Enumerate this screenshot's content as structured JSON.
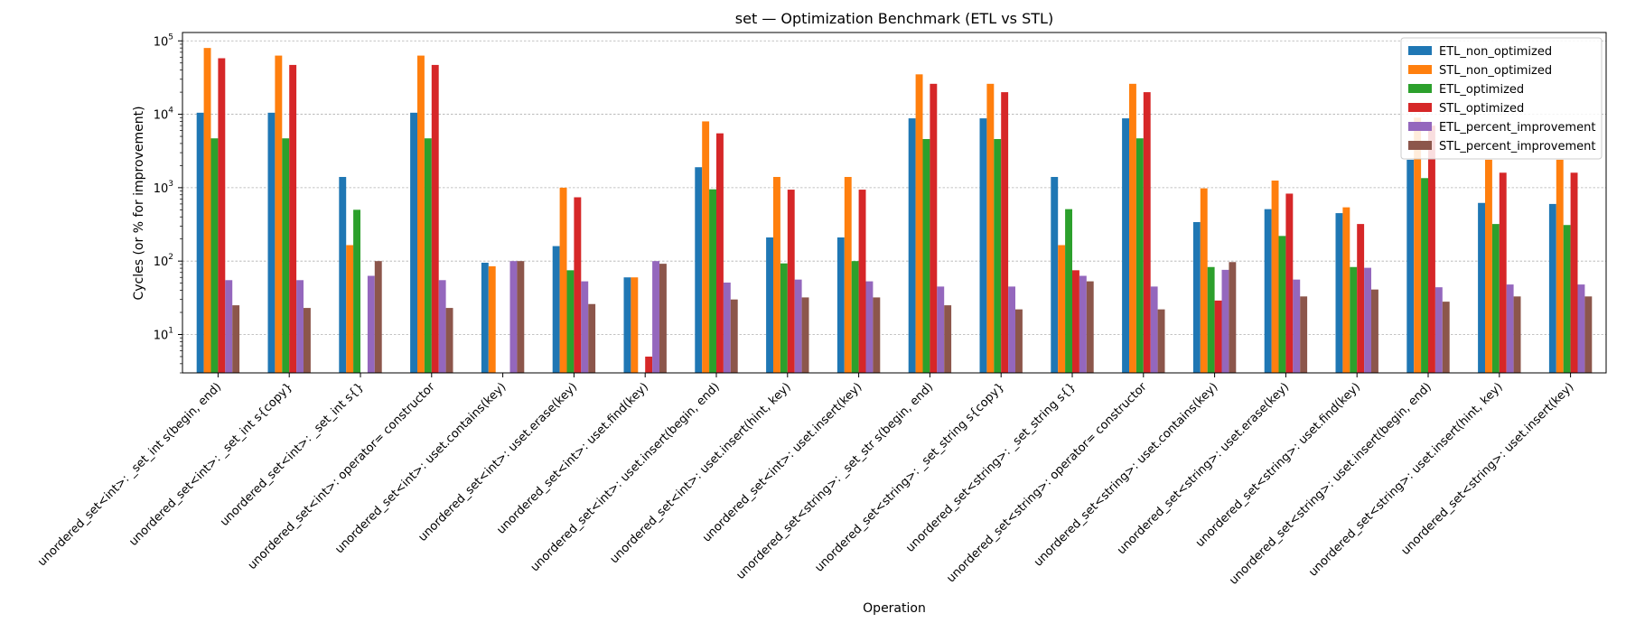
{
  "chart_data": {
    "type": "bar",
    "title": "set — Optimization Benchmark (ETL vs STL)",
    "xlabel": "Operation",
    "ylabel": "Cycles (or % for improvement)",
    "yscale": "log",
    "ylim": [
      3,
      130000
    ],
    "y_ticks": [
      {
        "value": 10,
        "base": "10",
        "exp": "1"
      },
      {
        "value": 100,
        "base": "10",
        "exp": "2"
      },
      {
        "value": 1000,
        "base": "10",
        "exp": "3"
      },
      {
        "value": 10000,
        "base": "10",
        "exp": "4"
      },
      {
        "value": 100000,
        "base": "10",
        "exp": "5"
      }
    ],
    "grid": "y-major",
    "legend_position": "top-right",
    "categories": [
      "unordered_set<int>: _set_int s(begin, end)",
      "unordered_set<int>: _set_int s{copy}",
      "unordered_set<int>: _set_int s{}",
      "unordered_set<int>: operator= constructor",
      "unordered_set<int>: uset.contains(key)",
      "unordered_set<int>: uset.erase(key)",
      "unordered_set<int>: uset.find(key)",
      "unordered_set<int>: uset.insert(begin, end)",
      "unordered_set<int>: uset.insert(hint, key)",
      "unordered_set<int>: uset.insert(key)",
      "unordered_set<string>: _set_str s(begin, end)",
      "unordered_set<string>: _set_string s{copy}",
      "unordered_set<string>: _set_string s{}",
      "unordered_set<string>: operator= constructor",
      "unordered_set<string>: uset.contains(key)",
      "unordered_set<string>: uset.erase(key)",
      "unordered_set<string>: uset.find(key)",
      "unordered_set<string>: uset.insert(begin, end)",
      "unordered_set<string>: uset.insert(hint, key)",
      "unordered_set<string>: uset.insert(key)"
    ],
    "series": [
      {
        "name": "ETL_non_optimized",
        "color": "#1f77b4",
        "values": [
          10500,
          10500,
          1400,
          10500,
          95,
          160,
          60,
          1900,
          210,
          210,
          8800,
          8800,
          1400,
          8800,
          340,
          510,
          450,
          2400,
          620,
          600
        ]
      },
      {
        "name": "STL_non_optimized",
        "color": "#ff7f0e",
        "values": [
          80000,
          63000,
          165,
          63000,
          85,
          1000,
          60,
          8000,
          1400,
          1400,
          35000,
          26000,
          165,
          26000,
          980,
          1250,
          540,
          9000,
          2400,
          2400
        ]
      },
      {
        "name": "ETL_optimized",
        "color": "#2ca02c",
        "values": [
          4700,
          4700,
          500,
          4700,
          null,
          75,
          null,
          950,
          93,
          100,
          4600,
          4600,
          510,
          4700,
          83,
          220,
          83,
          1350,
          320,
          310
        ]
      },
      {
        "name": "STL_optimized",
        "color": "#d62728",
        "values": [
          58000,
          47000,
          null,
          47000,
          null,
          740,
          5,
          5500,
          940,
          940,
          26000,
          20000,
          75,
          20000,
          29,
          830,
          320,
          7000,
          1600,
          1600
        ]
      },
      {
        "name": "ETL_percent_improvement",
        "color": "#9467bd",
        "values": [
          55,
          55,
          63,
          55,
          100,
          53,
          100,
          51,
          56,
          53,
          45,
          45,
          63,
          45,
          76,
          56,
          81,
          44,
          48,
          48
        ]
      },
      {
        "name": "STL_percent_improvement",
        "color": "#8c564b",
        "values": [
          25,
          23,
          100,
          23,
          100,
          26,
          92,
          30,
          32,
          32,
          25,
          22,
          53,
          22,
          97,
          33,
          41,
          28,
          33,
          33
        ]
      }
    ]
  }
}
